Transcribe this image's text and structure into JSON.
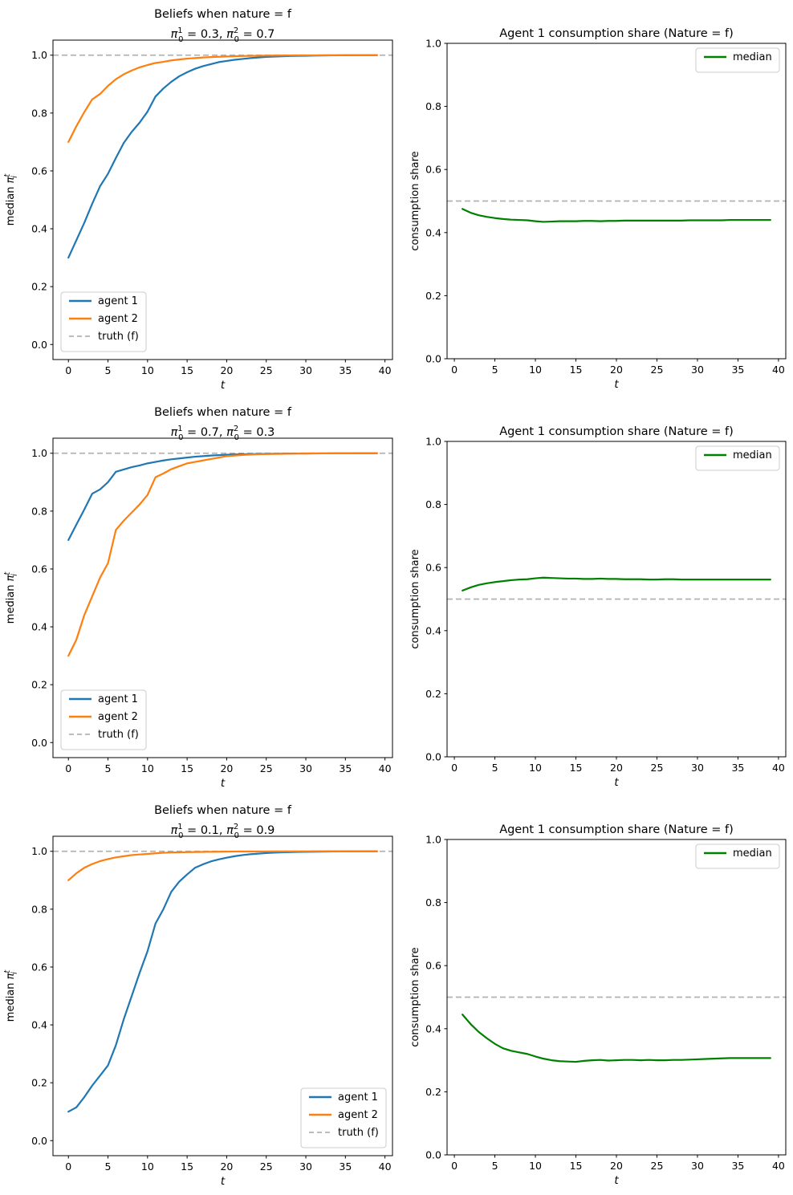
{
  "figure": {
    "background": "#ffffff",
    "colors": {
      "agent1": "#1f77b4",
      "agent2": "#ff7f0e",
      "median": "#008000",
      "truth": "#b3b3b3",
      "spine": "#000000",
      "legend_border": "#cccccc"
    }
  },
  "chart_data": [
    {
      "id": "beliefs-row1",
      "type": "line",
      "grid": false,
      "title": "Beliefs when nature = f",
      "subtitle": "π₀¹ = 0.3, π₀² = 0.7",
      "priors": {
        "sub": "0",
        "sup1": "1",
        "sup2": "2",
        "v1": "0.3",
        "v2": "0.7"
      },
      "xlabel": "t",
      "ylabel": "median π_i^t",
      "ylabel_kind": "pi",
      "xlim": [
        -1.95,
        40.95
      ],
      "ylim": [
        -0.052,
        1.052
      ],
      "x_ticks": [
        0,
        5,
        10,
        15,
        20,
        25,
        30,
        35,
        40
      ],
      "y_ticks": [
        0.0,
        0.2,
        0.4,
        0.6,
        0.8,
        1.0
      ],
      "x_start": 0,
      "legend": {
        "position": "lower-left",
        "entries": [
          "agent 1",
          "agent 2",
          "truth (f)"
        ]
      },
      "series": [
        {
          "name": "agent 1",
          "color_key": "agent1",
          "style": "solid",
          "values": [
            0.3,
            0.36,
            0.42,
            0.486,
            0.547,
            0.59,
            0.645,
            0.697,
            0.735,
            0.767,
            0.805,
            0.857,
            0.885,
            0.908,
            0.927,
            0.941,
            0.953,
            0.962,
            0.969,
            0.976,
            0.98,
            0.984,
            0.987,
            0.99,
            0.992,
            0.994,
            0.995,
            0.996,
            0.997,
            0.9975,
            0.998,
            0.9985,
            0.999,
            0.9992,
            0.9994,
            0.9996,
            0.9997,
            0.9998,
            0.9999,
            1.0
          ]
        },
        {
          "name": "agent 2",
          "color_key": "agent2",
          "style": "solid",
          "values": [
            0.7,
            0.754,
            0.803,
            0.847,
            0.866,
            0.894,
            0.917,
            0.934,
            0.947,
            0.958,
            0.966,
            0.973,
            0.977,
            0.982,
            0.985,
            0.988,
            0.99,
            0.992,
            0.9935,
            0.9945,
            0.9955,
            0.9965,
            0.997,
            0.9975,
            0.998,
            0.9985,
            0.9987,
            0.9989,
            0.9991,
            0.9993,
            0.9994,
            0.9995,
            0.9996,
            0.9997,
            0.9998,
            0.9999,
            0.9999,
            1.0,
            1.0,
            1.0
          ]
        },
        {
          "name": "truth (f)",
          "color_key": "truth",
          "style": "dashed",
          "const": 1.0
        }
      ]
    },
    {
      "id": "share-row1",
      "type": "line",
      "grid": false,
      "title": "Agent 1 consumption share (Nature = f)",
      "xlabel": "t",
      "ylabel": "consumption share",
      "ylabel_kind": "plain",
      "xlim": [
        -0.9,
        40.9
      ],
      "ylim": [
        0.0,
        1.0
      ],
      "x_ticks": [
        0,
        5,
        10,
        15,
        20,
        25,
        30,
        35,
        40
      ],
      "y_ticks": [
        0.0,
        0.2,
        0.4,
        0.6,
        0.8,
        1.0
      ],
      "x_start": 1,
      "legend": {
        "position": "upper-right",
        "entries": [
          "median"
        ]
      },
      "series": [
        {
          "name": "median",
          "color_key": "median",
          "style": "solid",
          "values": [
            0.475,
            0.463,
            0.455,
            0.45,
            0.446,
            0.443,
            0.441,
            0.44,
            0.439,
            0.436,
            0.434,
            0.435,
            0.436,
            0.436,
            0.436,
            0.437,
            0.437,
            0.436,
            0.437,
            0.437,
            0.438,
            0.438,
            0.438,
            0.438,
            0.438,
            0.438,
            0.438,
            0.438,
            0.439,
            0.439,
            0.439,
            0.439,
            0.439,
            0.44,
            0.44,
            0.44,
            0.44,
            0.44,
            0.44
          ]
        },
        {
          "name": "truth",
          "color_key": "truth",
          "style": "dashed",
          "const": 0.5
        }
      ]
    },
    {
      "id": "beliefs-row2",
      "type": "line",
      "grid": false,
      "title": "Beliefs when nature = f",
      "subtitle": "π₀¹ = 0.7, π₀² = 0.3",
      "priors": {
        "sub": "0",
        "sup1": "1",
        "sup2": "2",
        "v1": "0.7",
        "v2": "0.3"
      },
      "xlabel": "t",
      "ylabel": "median π_i^t",
      "ylabel_kind": "pi",
      "xlim": [
        -1.95,
        40.95
      ],
      "ylim": [
        -0.052,
        1.052
      ],
      "x_ticks": [
        0,
        5,
        10,
        15,
        20,
        25,
        30,
        35,
        40
      ],
      "y_ticks": [
        0.0,
        0.2,
        0.4,
        0.6,
        0.8,
        1.0
      ],
      "x_start": 0,
      "legend": {
        "position": "lower-left",
        "entries": [
          "agent 1",
          "agent 2",
          "truth (f)"
        ]
      },
      "series": [
        {
          "name": "agent 1",
          "color_key": "agent1",
          "style": "solid",
          "values": [
            0.7,
            0.753,
            0.805,
            0.86,
            0.875,
            0.9,
            0.936,
            0.944,
            0.952,
            0.958,
            0.965,
            0.97,
            0.975,
            0.979,
            0.982,
            0.985,
            0.988,
            0.99,
            0.992,
            0.9935,
            0.995,
            0.996,
            0.9965,
            0.997,
            0.9975,
            0.998,
            0.9983,
            0.9986,
            0.9989,
            0.9991,
            0.9993,
            0.9994,
            0.9995,
            0.9996,
            0.9997,
            0.9998,
            0.9998,
            0.9999,
            1.0,
            1.0
          ]
        },
        {
          "name": "agent 2",
          "color_key": "agent2",
          "style": "solid",
          "values": [
            0.3,
            0.355,
            0.44,
            0.505,
            0.57,
            0.62,
            0.735,
            0.767,
            0.795,
            0.823,
            0.856,
            0.917,
            0.93,
            0.945,
            0.955,
            0.965,
            0.97,
            0.975,
            0.98,
            0.985,
            0.99,
            0.992,
            0.994,
            0.9955,
            0.9965,
            0.997,
            0.9975,
            0.998,
            0.9985,
            0.9988,
            0.999,
            0.9992,
            0.9994,
            0.9995,
            0.9996,
            0.9997,
            0.9998,
            0.9999,
            1.0,
            1.0
          ]
        },
        {
          "name": "truth (f)",
          "color_key": "truth",
          "style": "dashed",
          "const": 1.0
        }
      ]
    },
    {
      "id": "share-row2",
      "type": "line",
      "grid": false,
      "title": "Agent 1 consumption share (Nature = f)",
      "xlabel": "t",
      "ylabel": "consumption share",
      "ylabel_kind": "plain",
      "xlim": [
        -0.9,
        40.9
      ],
      "ylim": [
        0.0,
        1.0
      ],
      "x_ticks": [
        0,
        5,
        10,
        15,
        20,
        25,
        30,
        35,
        40
      ],
      "y_ticks": [
        0.0,
        0.2,
        0.4,
        0.6,
        0.8,
        1.0
      ],
      "x_start": 1,
      "legend": {
        "position": "upper-right",
        "entries": [
          "median"
        ]
      },
      "series": [
        {
          "name": "median",
          "color_key": "median",
          "style": "solid",
          "values": [
            0.527,
            0.537,
            0.545,
            0.55,
            0.554,
            0.557,
            0.56,
            0.562,
            0.563,
            0.566,
            0.568,
            0.567,
            0.566,
            0.565,
            0.565,
            0.564,
            0.564,
            0.565,
            0.564,
            0.564,
            0.563,
            0.563,
            0.563,
            0.562,
            0.562,
            0.563,
            0.563,
            0.562,
            0.562,
            0.562,
            0.562,
            0.562,
            0.562,
            0.562,
            0.562,
            0.562,
            0.562,
            0.562,
            0.562
          ]
        },
        {
          "name": "truth",
          "color_key": "truth",
          "style": "dashed",
          "const": 0.5
        }
      ]
    },
    {
      "id": "beliefs-row3",
      "type": "line",
      "grid": false,
      "title": "Beliefs when nature = f",
      "subtitle": "π₀¹ = 0.1, π₀² = 0.9",
      "priors": {
        "sub": "0",
        "sup1": "1",
        "sup2": "2",
        "v1": "0.1",
        "v2": "0.9"
      },
      "xlabel": "t",
      "ylabel": "median π_i^t",
      "ylabel_kind": "pi",
      "xlim": [
        -1.95,
        40.95
      ],
      "ylim": [
        -0.052,
        1.052
      ],
      "x_ticks": [
        0,
        5,
        10,
        15,
        20,
        25,
        30,
        35,
        40
      ],
      "y_ticks": [
        0.0,
        0.2,
        0.4,
        0.6,
        0.8,
        1.0
      ],
      "x_start": 0,
      "legend": {
        "position": "lower-right",
        "entries": [
          "agent 1",
          "agent 2",
          "truth (f)"
        ]
      },
      "series": [
        {
          "name": "agent 1",
          "color_key": "agent1",
          "style": "solid",
          "values": [
            0.1,
            0.115,
            0.15,
            0.19,
            0.225,
            0.26,
            0.33,
            0.42,
            0.5,
            0.58,
            0.655,
            0.75,
            0.8,
            0.86,
            0.895,
            0.92,
            0.943,
            0.955,
            0.965,
            0.972,
            0.978,
            0.983,
            0.987,
            0.99,
            0.992,
            0.994,
            0.9955,
            0.9965,
            0.9972,
            0.9978,
            0.9983,
            0.9987,
            0.999,
            0.9992,
            0.9994,
            0.9996,
            0.9997,
            0.9998,
            0.9999,
            1.0
          ]
        },
        {
          "name": "agent 2",
          "color_key": "agent2",
          "style": "solid",
          "values": [
            0.9,
            0.924,
            0.943,
            0.956,
            0.966,
            0.973,
            0.979,
            0.983,
            0.987,
            0.989,
            0.991,
            0.993,
            0.995,
            0.996,
            0.9965,
            0.997,
            0.9975,
            0.998,
            0.9983,
            0.9986,
            0.9989,
            0.9991,
            0.9992,
            0.9993,
            0.9994,
            0.9995,
            0.9996,
            0.9997,
            0.9997,
            0.9998,
            0.9998,
            0.9999,
            0.9999,
            0.9999,
            1.0,
            1.0,
            1.0,
            1.0,
            1.0,
            1.0
          ]
        },
        {
          "name": "truth (f)",
          "color_key": "truth",
          "style": "dashed",
          "const": 1.0
        }
      ]
    },
    {
      "id": "share-row3",
      "type": "line",
      "grid": false,
      "title": "Agent 1 consumption share (Nature = f)",
      "xlabel": "t",
      "ylabel": "consumption share",
      "ylabel_kind": "plain",
      "xlim": [
        -0.9,
        40.9
      ],
      "ylim": [
        0.0,
        1.0
      ],
      "x_ticks": [
        0,
        5,
        10,
        15,
        20,
        25,
        30,
        35,
        40
      ],
      "y_ticks": [
        0.0,
        0.2,
        0.4,
        0.6,
        0.8,
        1.0
      ],
      "x_start": 1,
      "legend": {
        "position": "upper-right",
        "entries": [
          "median"
        ]
      },
      "series": [
        {
          "name": "median",
          "color_key": "median",
          "style": "solid",
          "values": [
            0.445,
            0.415,
            0.39,
            0.37,
            0.352,
            0.338,
            0.33,
            0.325,
            0.32,
            0.312,
            0.305,
            0.3,
            0.297,
            0.296,
            0.295,
            0.298,
            0.3,
            0.301,
            0.299,
            0.3,
            0.301,
            0.301,
            0.3,
            0.301,
            0.3,
            0.3,
            0.301,
            0.301,
            0.302,
            0.303,
            0.304,
            0.305,
            0.306,
            0.307,
            0.307,
            0.307,
            0.307,
            0.307,
            0.307
          ]
        },
        {
          "name": "truth",
          "color_key": "truth",
          "style": "dashed",
          "const": 0.5
        }
      ]
    }
  ]
}
